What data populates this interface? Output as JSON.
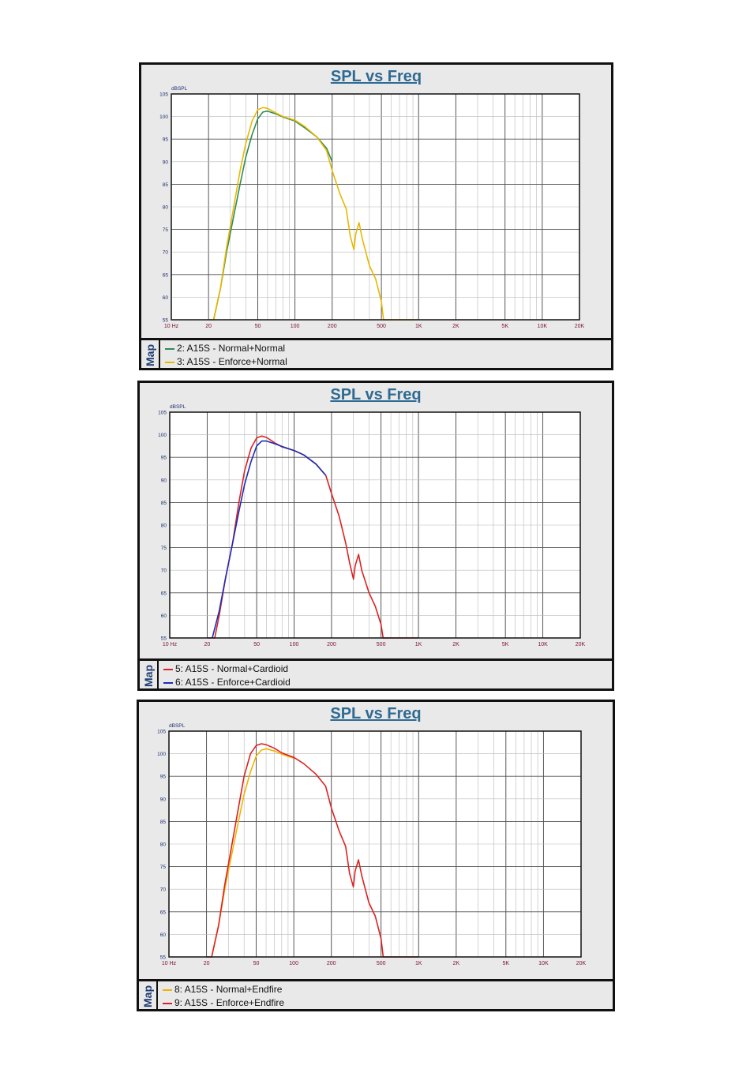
{
  "chart_data": [
    {
      "type": "line",
      "title": "SPL vs Freq",
      "ylabel": "dBSPL",
      "x_scale": "log",
      "xlim": [
        10,
        20000
      ],
      "ylim": [
        55,
        105
      ],
      "x_ticks": [
        10,
        20,
        50,
        100,
        200,
        500,
        1000,
        2000,
        5000,
        10000,
        20000
      ],
      "x_tick_labels": [
        "10 Hz",
        "20",
        "50",
        "100",
        "200",
        "500",
        "1K",
        "2K",
        "5K",
        "10K",
        "20K"
      ],
      "y_ticks": [
        55,
        60,
        65,
        70,
        75,
        80,
        85,
        90,
        95,
        100,
        105
      ],
      "y_tick_labels": [
        "55",
        "60",
        "65",
        "70",
        "75",
        "80",
        "85",
        "90",
        "95",
        "100",
        "105"
      ],
      "grid": true,
      "legend_title": "Map",
      "legend_position": "bottom",
      "series": [
        {
          "name": "2: A15S - Normal+Normal",
          "color": "#2e8b57",
          "x": [
            22,
            25,
            28,
            32,
            36,
            40,
            45,
            50,
            55,
            60,
            70,
            80,
            100,
            120,
            150,
            180,
            200
          ],
          "y": [
            55,
            62,
            70,
            78,
            85,
            91,
            96,
            99.5,
            101,
            101.2,
            100.6,
            99.9,
            99,
            97.5,
            95.5,
            93,
            90
          ]
        },
        {
          "name": "3: A15S - Enforce+Normal",
          "color": "#e8b800",
          "x": [
            20,
            22,
            25,
            28,
            32,
            36,
            40,
            45,
            50,
            55,
            60,
            70,
            80,
            100,
            120,
            150,
            180,
            200,
            230,
            260,
            280,
            300,
            310,
            330,
            350,
            400,
            450,
            500,
            520,
            1000
          ],
          "y": [
            55,
            55,
            62,
            71,
            80,
            88,
            94,
            99,
            101.5,
            102,
            101.8,
            100.8,
            100,
            99.2,
            97.8,
            95.5,
            92.5,
            88,
            83,
            79.5,
            73.5,
            70.5,
            74,
            76.5,
            73,
            67,
            64,
            59,
            55,
            55
          ]
        }
      ]
    },
    {
      "type": "line",
      "title": "SPL vs Freq",
      "ylabel": "dBSPL",
      "x_scale": "log",
      "xlim": [
        10,
        20000
      ],
      "ylim": [
        55,
        105
      ],
      "x_ticks": [
        10,
        20,
        50,
        100,
        200,
        500,
        1000,
        2000,
        5000,
        10000,
        20000
      ],
      "x_tick_labels": [
        "10 Hz",
        "20",
        "50",
        "100",
        "200",
        "500",
        "1K",
        "2K",
        "5K",
        "10K",
        "20K"
      ],
      "y_ticks": [
        55,
        60,
        65,
        70,
        75,
        80,
        85,
        90,
        95,
        100,
        105
      ],
      "y_tick_labels": [
        "55",
        "60",
        "65",
        "70",
        "75",
        "80",
        "85",
        "90",
        "95",
        "100",
        "105"
      ],
      "grid": true,
      "legend_title": "Map",
      "legend_position": "bottom",
      "series": [
        {
          "name": "5: A15S - Normal+Cardioid",
          "color": "#dd2222",
          "x": [
            20,
            23,
            25,
            28,
            32,
            36,
            40,
            45,
            50,
            55,
            60,
            70,
            80,
            100,
            120,
            150,
            180,
            200,
            230,
            260,
            280,
            300,
            310,
            330,
            350,
            400,
            450,
            500,
            520,
            1000
          ],
          "y": [
            55,
            55,
            60,
            68,
            76,
            85,
            92,
            97,
            99.3,
            99.7,
            99.4,
            98.2,
            97.3,
            96.5,
            95.5,
            93.5,
            91,
            87,
            82,
            76,
            71.5,
            68,
            71,
            73.5,
            70,
            65,
            62,
            58,
            55,
            55
          ]
        },
        {
          "name": "6: A15S - Enforce+Cardioid",
          "color": "#1c2db8",
          "x": [
            22,
            25,
            28,
            32,
            36,
            40,
            45,
            50,
            55,
            60,
            70,
            80,
            100,
            120,
            150,
            180
          ],
          "y": [
            55,
            61,
            68,
            76,
            83,
            89,
            94,
            97.5,
            98.6,
            98.6,
            98,
            97.4,
            96.5,
            95.5,
            93.5,
            91
          ]
        }
      ]
    },
    {
      "type": "line",
      "title": "SPL vs Freq",
      "ylabel": "dBSPL",
      "x_scale": "log",
      "xlim": [
        10,
        20000
      ],
      "ylim": [
        55,
        105
      ],
      "x_ticks": [
        10,
        20,
        50,
        100,
        200,
        500,
        1000,
        2000,
        5000,
        10000,
        20000
      ],
      "x_tick_labels": [
        "10 Hz",
        "20",
        "50",
        "100",
        "200",
        "500",
        "1K",
        "2K",
        "5K",
        "10K",
        "20K"
      ],
      "y_ticks": [
        55,
        60,
        65,
        70,
        75,
        80,
        85,
        90,
        95,
        100,
        105
      ],
      "y_tick_labels": [
        "55",
        "60",
        "65",
        "70",
        "75",
        "80",
        "85",
        "90",
        "95",
        "100",
        "105"
      ],
      "grid": true,
      "legend_title": "Map",
      "legend_position": "bottom",
      "series": [
        {
          "name": "8: A15S - Normal+Endfire",
          "color": "#f0b400",
          "x": [
            22,
            25,
            28,
            32,
            36,
            40,
            45,
            50,
            55,
            60,
            70,
            80,
            100
          ],
          "y": [
            55,
            62,
            70,
            78,
            85,
            91,
            96,
            99.5,
            100.8,
            101.1,
            100.6,
            99.9,
            99
          ]
        },
        {
          "name": "9: A15S - Enforce+Endfire",
          "color": "#dd2222",
          "x": [
            20,
            22,
            25,
            28,
            32,
            36,
            40,
            45,
            50,
            55,
            60,
            70,
            80,
            100,
            120,
            150,
            180,
            200,
            230,
            260,
            280,
            300,
            310,
            330,
            350,
            400,
            450,
            500,
            520,
            1000
          ],
          "y": [
            55,
            55,
            62,
            71,
            80,
            88,
            95,
            100,
            101.8,
            102.2,
            102,
            101.2,
            100.2,
            99.2,
            97.8,
            95.5,
            92.8,
            88,
            83,
            79.5,
            73.5,
            70.5,
            74,
            76.5,
            73,
            67,
            64,
            59,
            55,
            55
          ]
        }
      ]
    }
  ]
}
